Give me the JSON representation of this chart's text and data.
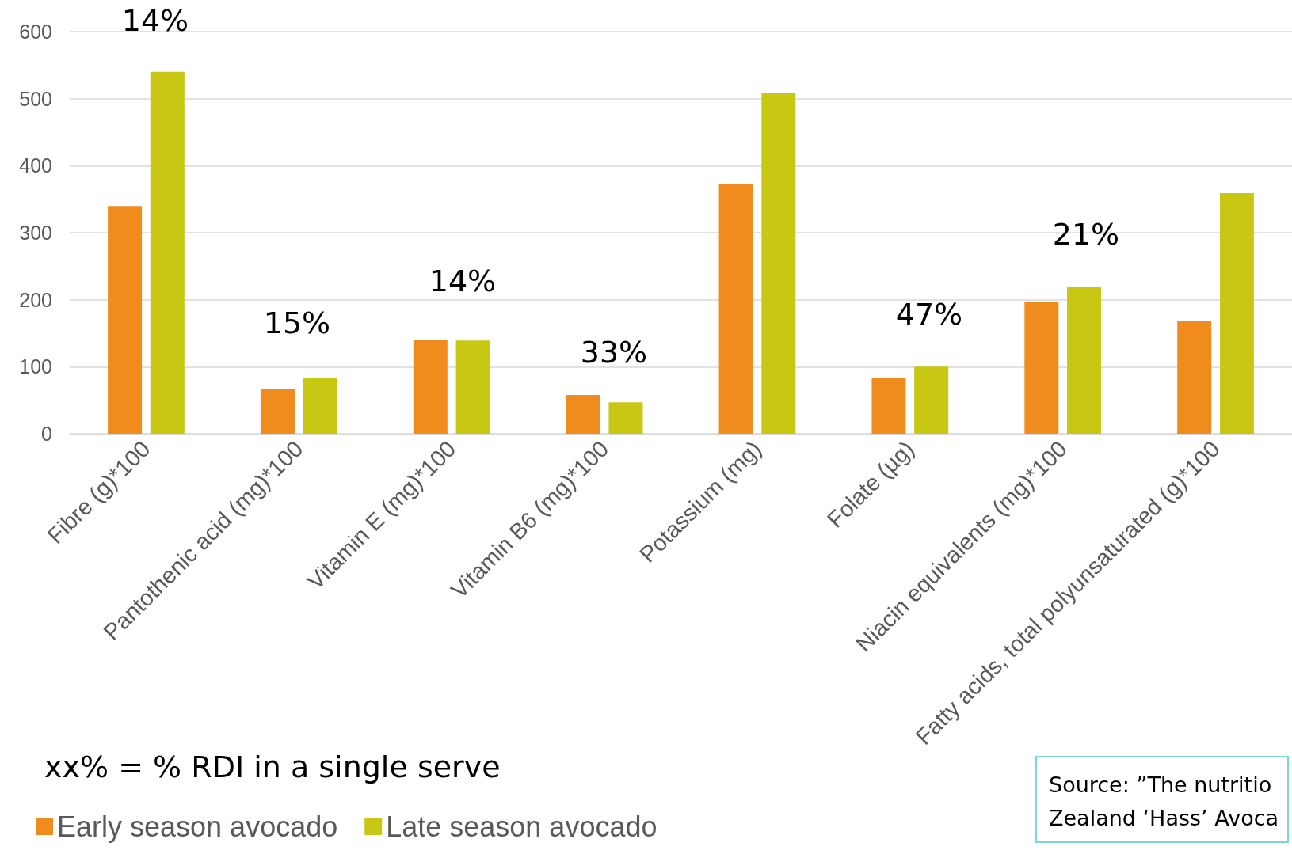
{
  "chart_data": {
    "type": "bar",
    "categories": [
      "Fibre (g)*100",
      "Pantothenic acid (mg)*100",
      "Vitamin E (mg)*100",
      "Vitamin B6 (mg)*100",
      "Potassium (mg)",
      "Folate (µg)",
      "Niacin equivalents (mg)*100",
      "Fatty acids, total polyunsaturated (g)*100"
    ],
    "series": [
      {
        "name": "Early season avocado",
        "color": "#f08c1e",
        "values": [
          340,
          67,
          140,
          58,
          373,
          84,
          197,
          169
        ]
      },
      {
        "name": "Late season avocado",
        "color": "#c8c814",
        "values": [
          540,
          84,
          139,
          47,
          509,
          100,
          219,
          359
        ]
      }
    ],
    "ylim": [
      0,
      600
    ],
    "yticks": [
      0,
      100,
      200,
      300,
      400,
      500,
      600
    ],
    "grid": "y",
    "legend": "bottom left",
    "annotations": [
      "14%",
      "15%",
      "14%",
      "33%",
      "47%",
      "21%",
      "xx% = % RDI in a single serve",
      "Source: ”The nutritio\nZealand ‘Hass’ Avoca"
    ]
  }
}
